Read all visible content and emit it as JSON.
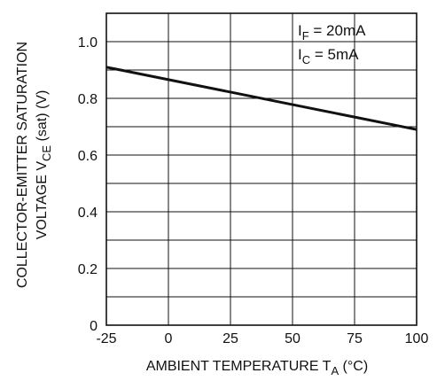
{
  "chart_data": {
    "type": "line",
    "xlabel": {
      "main": "AMBIENT TEMPERATURE T",
      "sub": "A",
      "unit": " (°C)"
    },
    "ylabel": {
      "line1": "COLLECTOR-EMITTER SATURATION",
      "line2_main": "VOLTAGE V",
      "line2_sub": "CE",
      "line2_rest": " (sat) (V)"
    },
    "xlim": [
      -25,
      100
    ],
    "ylim": [
      0,
      1.1
    ],
    "x_ticks": [
      "-25",
      "0",
      "25",
      "50",
      "75",
      "100"
    ],
    "y_ticks": [
      "0",
      "0.2",
      "0.4",
      "0.6",
      "0.8",
      "1.0"
    ],
    "grid": true,
    "conditions": [
      {
        "main": "I",
        "sub": "F",
        "rest": " = 20mA"
      },
      {
        "main": "I",
        "sub": "C",
        "rest": " = 5mA"
      }
    ],
    "series": [
      {
        "x": [
          -25,
          0,
          25,
          50,
          75,
          100
        ],
        "y": [
          0.91,
          0.866,
          0.822,
          0.778,
          0.734,
          0.69
        ]
      }
    ]
  }
}
